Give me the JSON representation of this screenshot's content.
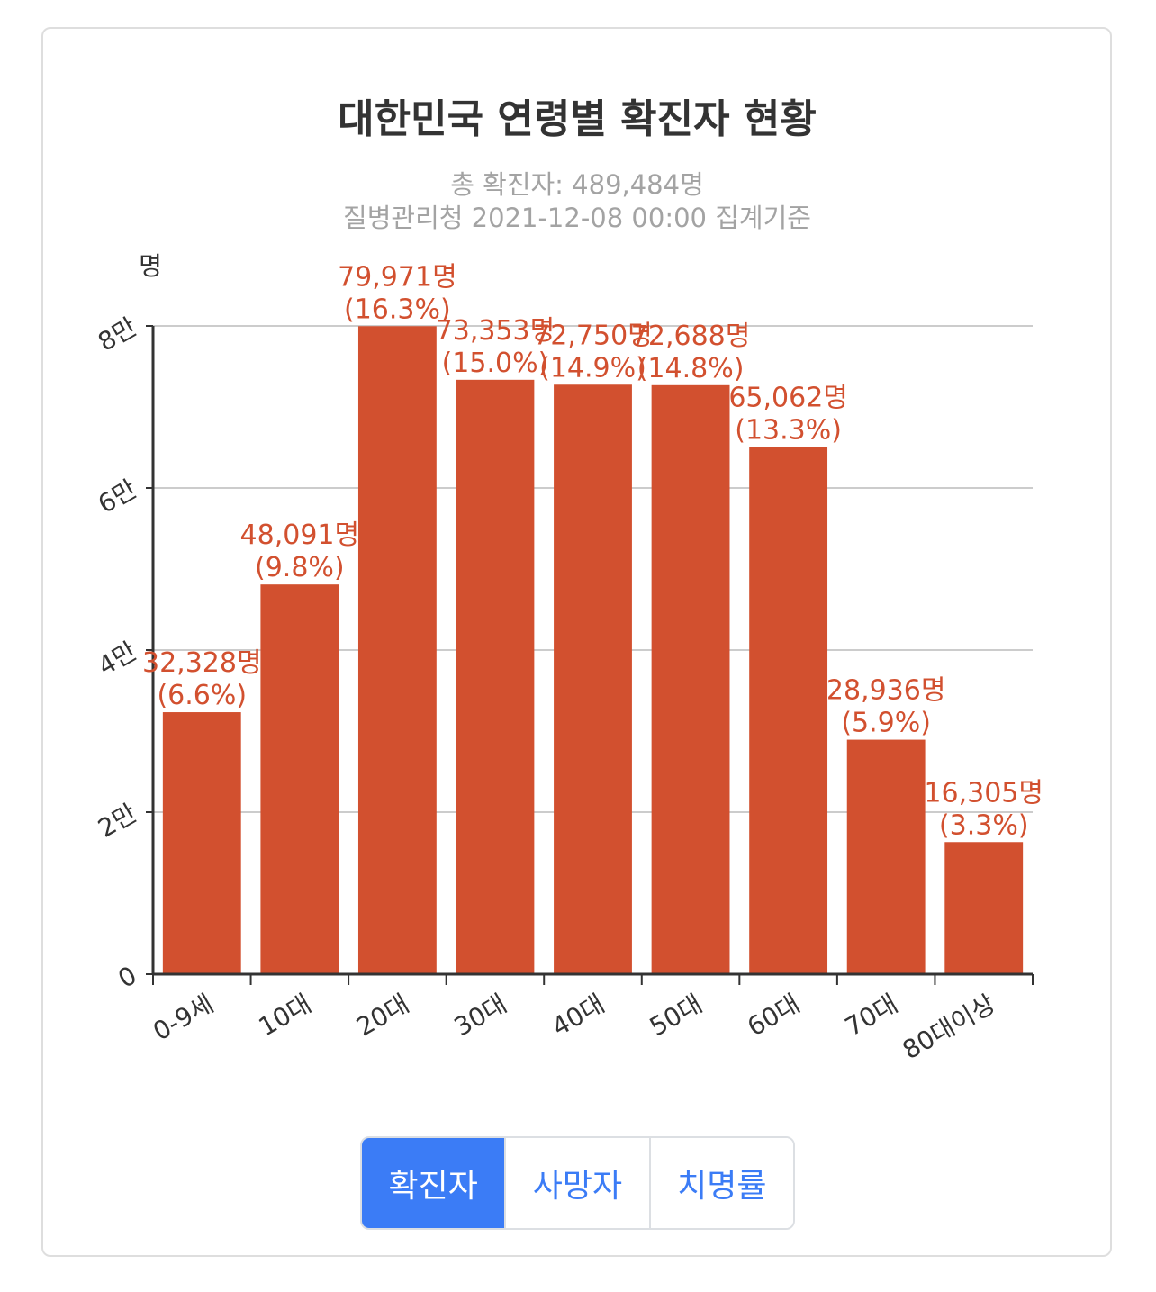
{
  "chart_data": {
    "type": "bar",
    "title": "대한민국 연령별 확진자 현황",
    "subtitle": [
      "총 확진자: 489,484명",
      "질병관리청 2021-12-08 00:00 집계기준"
    ],
    "ylabel": "명",
    "xlabel": "",
    "categories": [
      "0-9세",
      "10대",
      "20대",
      "30대",
      "40대",
      "50대",
      "60대",
      "70대",
      "80대이상"
    ],
    "values": [
      32328,
      48091,
      79971,
      73353,
      72750,
      72688,
      65062,
      28936,
      16305
    ],
    "value_labels": [
      "32,328명",
      "48,091명",
      "79,971명",
      "73,353명",
      "72,750명",
      "72,688명",
      "65,062명",
      "28,936명",
      "16,305명"
    ],
    "percent_labels": [
      "(6.6%)",
      "(9.8%)",
      "(16.3%)",
      "(15.0%)",
      "(14.9%)",
      "(14.8%)",
      "(13.3%)",
      "(5.9%)",
      "(3.3%)"
    ],
    "ylim": [
      0,
      80000
    ],
    "yticks": [
      0,
      20000,
      40000,
      60000,
      80000
    ],
    "ytick_labels": [
      "0",
      "2만",
      "4만",
      "6만",
      "8만"
    ],
    "grid": true,
    "bar_color": "#d2502f"
  },
  "buttons": [
    {
      "label": "확진자",
      "active": true
    },
    {
      "label": "사망자",
      "active": false
    },
    {
      "label": "치명률",
      "active": false
    }
  ],
  "accent_color": "#3b7cf6"
}
